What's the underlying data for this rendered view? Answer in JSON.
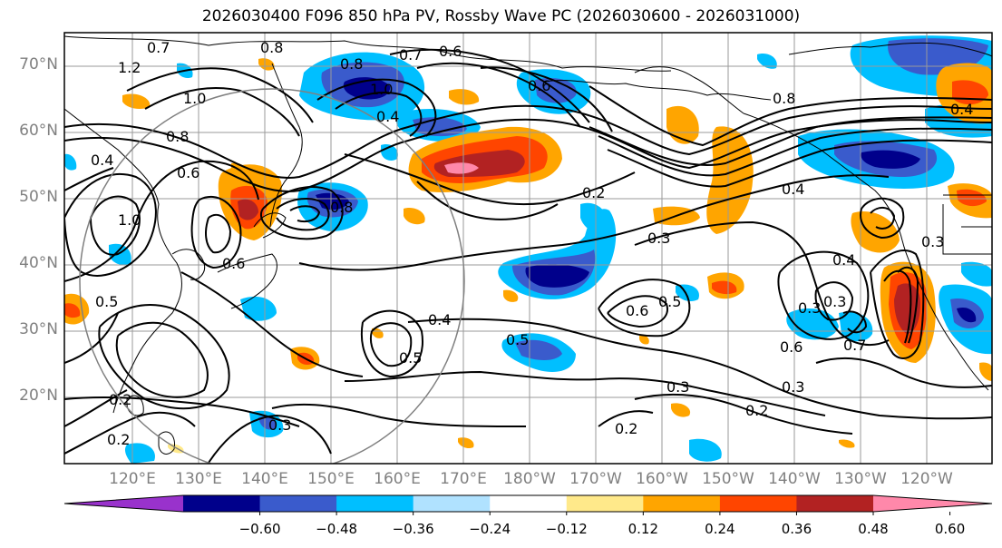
{
  "title": "2026030400 F096 850 hPa PV, Rossby Wave PC (2026030600 - 2026031000)",
  "lat_labels": [
    "70°N",
    "60°N",
    "50°N",
    "40°N",
    "30°N",
    "20°N"
  ],
  "lon_labels": [
    "120°E",
    "130°E",
    "140°E",
    "150°E",
    "160°E",
    "170°E",
    "180°W",
    "170°W",
    "160°W",
    "150°W",
    "140°W",
    "130°W",
    "120°W"
  ],
  "colorbar": {
    "ticks": [
      "−0.60",
      "−0.48",
      "−0.36",
      "−0.24",
      "−0.12",
      "0.12",
      "0.24",
      "0.36",
      "0.48",
      "0.60"
    ],
    "colors": [
      "#9932cc",
      "#00008b",
      "#3a5bcc",
      "#00bfff",
      "#b0e2ff",
      "#ffffff",
      "#ffe98a",
      "#ffa500",
      "#ff4500",
      "#b22222",
      "#ff88aa"
    ]
  },
  "contour_labels": [
    {
      "text": "0.7"
    },
    {
      "text": "0.8"
    },
    {
      "text": "0.7"
    },
    {
      "text": "0.6"
    },
    {
      "text": "1.2"
    },
    {
      "text": "0.8"
    },
    {
      "text": "1.0"
    },
    {
      "text": "1.0"
    },
    {
      "text": "0.6"
    },
    {
      "text": "0.4"
    },
    {
      "text": "0.8"
    },
    {
      "text": "0.6"
    },
    {
      "text": "0.4"
    },
    {
      "text": "0.8"
    },
    {
      "text": "0.4"
    },
    {
      "text": "1.0"
    },
    {
      "text": "0.8"
    },
    {
      "text": "0.2"
    },
    {
      "text": "0.4"
    },
    {
      "text": "0.3"
    },
    {
      "text": "0.4"
    },
    {
      "text": "0.3"
    },
    {
      "text": "0.6"
    },
    {
      "text": "0.5"
    },
    {
      "text": "0.4"
    },
    {
      "text": "0.5"
    },
    {
      "text": "0.5"
    },
    {
      "text": "0.5"
    },
    {
      "text": "0.3"
    },
    {
      "text": "0.6"
    },
    {
      "text": "0.7"
    },
    {
      "text": "0.3"
    },
    {
      "text": "0.2"
    },
    {
      "text": "0.2"
    },
    {
      "text": "0.3"
    },
    {
      "text": "0.2"
    },
    {
      "text": "0.2"
    },
    {
      "text": "0.3"
    },
    {
      "text": "0.3"
    },
    {
      "text": "0.6"
    }
  ]
}
